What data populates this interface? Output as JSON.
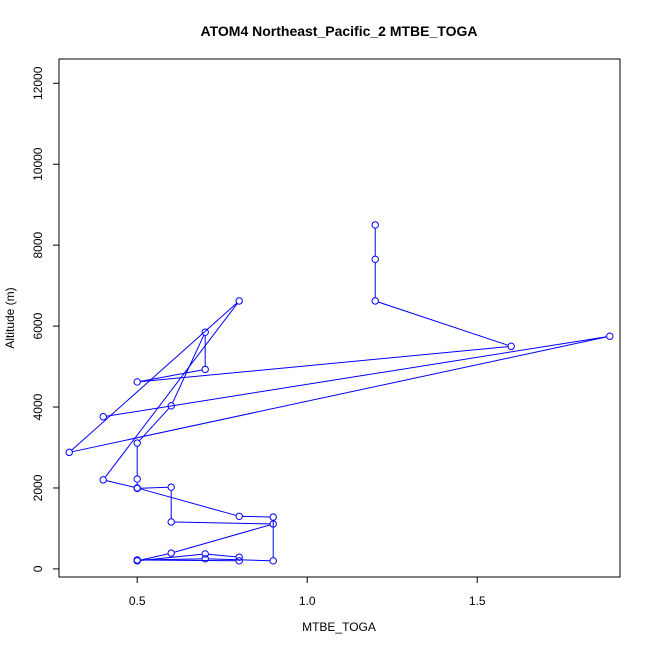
{
  "chart_data": {
    "type": "line",
    "title": "ATOM4 Northeast_Pacific_2 MTBE_TOGA",
    "xlabel": "MTBE_TOGA",
    "ylabel": "Altitude (m)",
    "xlim": [
      0.27,
      1.92
    ],
    "ylim": [
      -200,
      12600
    ],
    "x_ticks": [
      0.5,
      1.0,
      1.5
    ],
    "x_tick_labels": [
      "0.5",
      "1.0",
      "1.5"
    ],
    "y_ticks": [
      0,
      2000,
      4000,
      6000,
      8000,
      10000,
      12000
    ],
    "y_tick_labels": [
      "0",
      "2000",
      "4000",
      "6000",
      "8000",
      "10000",
      "12000"
    ],
    "grid": false,
    "line_color": "#0000ff",
    "marker": "open-circle",
    "series": [
      {
        "x": [
          1.2,
          1.2,
          1.2,
          1.6,
          0.5,
          0.7,
          0.7,
          0.6,
          0.5,
          0.5,
          0.5,
          0.6,
          0.6,
          0.9,
          0.6,
          0.5,
          0.7,
          0.8,
          0.8,
          0.5,
          0.7,
          0.9,
          0.9,
          0.8,
          0.5,
          0.4,
          0.8,
          0.3,
          1.89,
          0.4
        ],
        "y": [
          8500,
          7650,
          6620,
          5500,
          4620,
          4930,
          5850,
          4030,
          3110,
          2220,
          1990,
          2020,
          1160,
          1110,
          390,
          200,
          370,
          290,
          200,
          220,
          250,
          200,
          1280,
          1300,
          2000,
          2200,
          6620,
          2880,
          5750,
          3760
        ]
      }
    ]
  }
}
